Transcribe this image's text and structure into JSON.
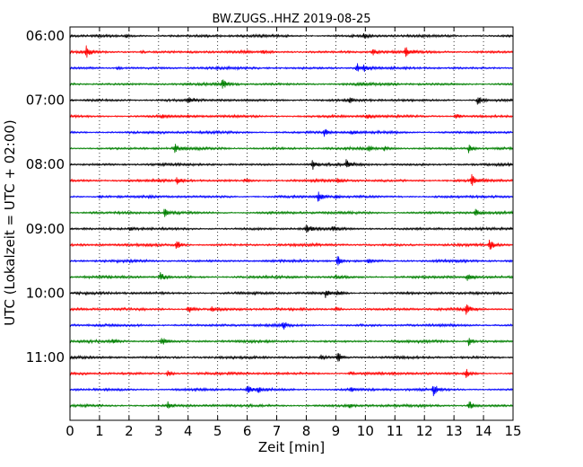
{
  "chart_data": {
    "type": "line",
    "title": "BW.ZUGS..HHZ 2019-08-25",
    "xlabel": "Zeit  [min]",
    "ylabel": "UTC (Lokalzeit = UTC + 02:00)",
    "xlim": [
      0,
      15
    ],
    "x_ticks": [
      "0",
      "1",
      "2",
      "3",
      "4",
      "5",
      "6",
      "7",
      "8",
      "9",
      "10",
      "11",
      "12",
      "13",
      "14",
      "15"
    ],
    "y_tick_labels": [
      "06:00",
      "07:00",
      "08:00",
      "09:00",
      "10:00",
      "11:00"
    ],
    "grid": "vertical-dotted",
    "trace_interval_minutes": 15,
    "colors": [
      "#000000",
      "#ff0000",
      "#0000ff",
      "#008000"
    ],
    "traces": [
      {
        "start": "06:00",
        "events": [
          {
            "t": 1.9,
            "a": 0.25
          },
          {
            "t": 9.95,
            "a": 0.35
          }
        ]
      },
      {
        "start": "06:15",
        "events": [
          {
            "t": 0.55,
            "a": 0.9
          },
          {
            "t": 2.4,
            "a": 0.2
          },
          {
            "t": 6.5,
            "a": 0.2
          },
          {
            "t": 10.25,
            "a": 0.45
          },
          {
            "t": 11.35,
            "a": 0.9
          }
        ]
      },
      {
        "start": "06:30",
        "events": [
          {
            "t": 1.6,
            "a": 0.2
          },
          {
            "t": 9.7,
            "a": 0.8
          },
          {
            "t": 9.95,
            "a": 0.45
          }
        ]
      },
      {
        "start": "06:45",
        "events": [
          {
            "t": 5.15,
            "a": 0.75
          },
          {
            "t": 9.85,
            "a": 0.2
          }
        ]
      },
      {
        "start": "07:00",
        "events": [
          {
            "t": 4.0,
            "a": 0.55
          },
          {
            "t": 9.45,
            "a": 0.5
          },
          {
            "t": 13.8,
            "a": 0.85
          }
        ]
      },
      {
        "start": "07:15",
        "events": [
          {
            "t": 3.1,
            "a": 0.25
          },
          {
            "t": 10.05,
            "a": 0.4
          },
          {
            "t": 13.05,
            "a": 0.6
          }
        ]
      },
      {
        "start": "07:30",
        "events": [
          {
            "t": 8.6,
            "a": 0.6
          },
          {
            "t": 9.5,
            "a": 0.35
          }
        ]
      },
      {
        "start": "07:45",
        "events": [
          {
            "t": 3.55,
            "a": 0.7
          },
          {
            "t": 10.1,
            "a": 0.4
          },
          {
            "t": 10.65,
            "a": 0.3
          },
          {
            "t": 13.5,
            "a": 0.7
          }
        ]
      },
      {
        "start": "08:00",
        "events": [
          {
            "t": 8.2,
            "a": 0.8
          },
          {
            "t": 9.35,
            "a": 0.6
          }
        ]
      },
      {
        "start": "08:15",
        "events": [
          {
            "t": 3.6,
            "a": 0.55
          },
          {
            "t": 5.9,
            "a": 0.25
          },
          {
            "t": 9.05,
            "a": 0.3
          },
          {
            "t": 13.6,
            "a": 0.85
          }
        ]
      },
      {
        "start": "08:30",
        "events": [
          {
            "t": 1.0,
            "a": 0.2
          },
          {
            "t": 8.4,
            "a": 0.8
          },
          {
            "t": 9.0,
            "a": 0.3
          }
        ]
      },
      {
        "start": "08:45",
        "events": [
          {
            "t": 3.2,
            "a": 0.75
          },
          {
            "t": 13.7,
            "a": 0.65
          }
        ]
      },
      {
        "start": "09:00",
        "events": [
          {
            "t": 2.0,
            "a": 0.3
          },
          {
            "t": 8.0,
            "a": 0.9
          },
          {
            "t": 8.9,
            "a": 0.4
          }
        ]
      },
      {
        "start": "09:15",
        "events": [
          {
            "t": 3.6,
            "a": 0.7
          },
          {
            "t": 14.2,
            "a": 0.8
          }
        ]
      },
      {
        "start": "09:30",
        "events": [
          {
            "t": 9.05,
            "a": 0.85
          },
          {
            "t": 10.1,
            "a": 0.3
          }
        ]
      },
      {
        "start": "09:45",
        "events": [
          {
            "t": 3.05,
            "a": 0.75
          },
          {
            "t": 9.0,
            "a": 0.3
          },
          {
            "t": 13.45,
            "a": 0.6
          }
        ]
      },
      {
        "start": "10:00",
        "events": [
          {
            "t": 8.65,
            "a": 0.7
          },
          {
            "t": 9.05,
            "a": 0.4
          }
        ]
      },
      {
        "start": "10:15",
        "events": [
          {
            "t": 4.0,
            "a": 0.75
          },
          {
            "t": 4.8,
            "a": 0.35
          },
          {
            "t": 9.0,
            "a": 0.35
          },
          {
            "t": 13.4,
            "a": 0.8
          }
        ]
      },
      {
        "start": "10:30",
        "events": [
          {
            "t": 7.2,
            "a": 0.7
          }
        ]
      },
      {
        "start": "10:45",
        "events": [
          {
            "t": 1.45,
            "a": 0.45
          },
          {
            "t": 3.1,
            "a": 0.75
          },
          {
            "t": 13.5,
            "a": 0.7
          }
        ]
      },
      {
        "start": "11:00",
        "events": [
          {
            "t": 8.5,
            "a": 0.35
          },
          {
            "t": 9.05,
            "a": 0.9
          }
        ]
      },
      {
        "start": "11:15",
        "events": [
          {
            "t": 3.3,
            "a": 0.5
          },
          {
            "t": 9.45,
            "a": 0.3
          },
          {
            "t": 13.4,
            "a": 0.75
          }
        ]
      },
      {
        "start": "11:30",
        "events": [
          {
            "t": 6.0,
            "a": 0.6
          },
          {
            "t": 6.35,
            "a": 0.5
          },
          {
            "t": 9.5,
            "a": 0.35
          },
          {
            "t": 12.3,
            "a": 0.9
          }
        ]
      },
      {
        "start": "11:45",
        "events": [
          {
            "t": 3.3,
            "a": 0.6
          },
          {
            "t": 9.45,
            "a": 0.35
          },
          {
            "t": 13.5,
            "a": 0.85
          }
        ]
      }
    ]
  }
}
